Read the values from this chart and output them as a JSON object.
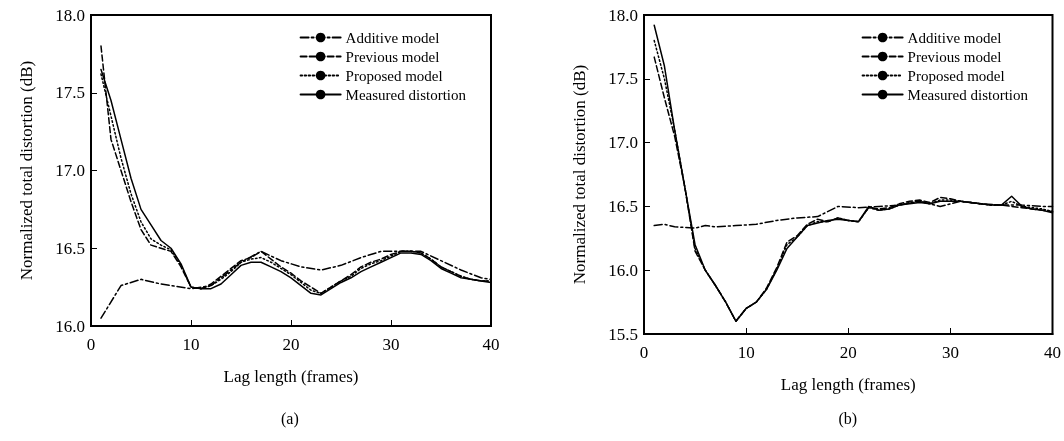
{
  "chart_data": [
    {
      "type": "line",
      "xlabel": "Lag length (frames)",
      "ylabel": "Normalized total distortion (dB)",
      "annotations": [
        "(a)"
      ],
      "xlim": [
        0,
        40
      ],
      "xticks": [
        0,
        10,
        20,
        30,
        40
      ],
      "ylim": [
        16,
        18
      ],
      "yticks": [
        {
          "value": 16,
          "label": "16.0"
        },
        {
          "value": 16.5,
          "label": "16.5"
        },
        {
          "value": 17,
          "label": "17.0"
        },
        {
          "value": 17.5,
          "label": "17.5"
        },
        {
          "value": 18,
          "label": "18.0"
        }
      ],
      "grid": false,
      "legend": "top right",
      "marker": "none",
      "series": [
        {
          "name": "Additive model",
          "color": "#000000",
          "line_style": "dashdot",
          "x": [
            1,
            3,
            5,
            7,
            10,
            12,
            15,
            17,
            19,
            21,
            23,
            25,
            27,
            29,
            31,
            33,
            35,
            37,
            39,
            40
          ],
          "values": [
            16.05,
            16.26,
            16.3,
            16.27,
            16.24,
            16.26,
            16.41,
            16.48,
            16.42,
            16.38,
            16.36,
            16.39,
            16.44,
            16.48,
            16.48,
            16.48,
            16.42,
            16.36,
            16.31,
            16.3
          ]
        },
        {
          "name": "Previous model",
          "color": "#000000",
          "line_style": "dashed",
          "x": [
            1,
            2,
            3,
            4,
            5,
            6,
            7,
            8,
            9,
            10,
            11,
            12,
            13,
            14,
            15,
            16,
            17,
            18,
            19,
            20,
            21,
            22,
            23,
            24,
            25,
            26,
            27,
            28,
            29,
            30,
            31,
            32,
            33,
            34,
            35,
            36,
            37,
            38,
            39,
            40
          ],
          "values": [
            17.8,
            17.2,
            17.0,
            16.8,
            16.62,
            16.52,
            16.5,
            16.48,
            16.38,
            16.25,
            16.24,
            16.27,
            16.32,
            16.37,
            16.42,
            16.44,
            16.48,
            16.43,
            16.38,
            16.34,
            16.29,
            16.25,
            16.21,
            16.25,
            16.29,
            16.33,
            16.38,
            16.41,
            16.43,
            16.46,
            16.48,
            16.48,
            16.47,
            16.43,
            16.38,
            16.35,
            16.32,
            16.3,
            16.29,
            16.29
          ]
        },
        {
          "name": "Proposed model",
          "color": "#000000",
          "line_style": "dotted",
          "x": [
            1,
            2,
            3,
            4,
            5,
            6,
            7,
            8,
            9,
            10,
            11,
            12,
            13,
            14,
            15,
            16,
            17,
            18,
            19,
            20,
            21,
            22,
            23,
            24,
            25,
            26,
            27,
            28,
            29,
            30,
            31,
            32,
            33,
            34,
            35,
            36,
            37,
            38,
            39,
            40
          ],
          "values": [
            17.62,
            17.35,
            17.08,
            16.85,
            16.67,
            16.56,
            16.52,
            16.49,
            16.39,
            16.25,
            16.24,
            16.26,
            16.3,
            16.35,
            16.41,
            16.43,
            16.44,
            16.41,
            16.37,
            16.33,
            16.28,
            16.23,
            16.21,
            16.25,
            16.29,
            16.32,
            16.37,
            16.4,
            16.42,
            16.45,
            16.48,
            16.48,
            16.47,
            16.43,
            16.38,
            16.35,
            16.32,
            16.3,
            16.29,
            16.29
          ]
        },
        {
          "name": "Measured distortion",
          "color": "#000000",
          "line_style": "solid",
          "x": [
            1,
            2,
            3,
            4,
            5,
            6,
            7,
            8,
            9,
            10,
            11,
            12,
            13,
            14,
            15,
            16,
            17,
            18,
            19,
            20,
            21,
            22,
            23,
            24,
            25,
            26,
            27,
            28,
            29,
            30,
            31,
            32,
            33,
            34,
            35,
            36,
            37,
            38,
            39,
            40
          ],
          "values": [
            17.65,
            17.45,
            17.2,
            16.95,
            16.75,
            16.65,
            16.55,
            16.5,
            16.4,
            16.25,
            16.24,
            16.24,
            16.27,
            16.33,
            16.39,
            16.41,
            16.41,
            16.38,
            16.35,
            16.31,
            16.26,
            16.21,
            16.2,
            16.24,
            16.28,
            16.31,
            16.35,
            16.38,
            16.41,
            16.44,
            16.47,
            16.47,
            16.46,
            16.42,
            16.37,
            16.34,
            16.31,
            16.3,
            16.29,
            16.28
          ]
        }
      ]
    },
    {
      "type": "line",
      "xlabel": "Lag length (frames)",
      "ylabel": "Normalized total distortion (dB)",
      "annotations": [
        "(b)"
      ],
      "xlim": [
        0,
        40
      ],
      "xticks": [
        0,
        10,
        20,
        30,
        40
      ],
      "ylim": [
        15.5,
        18
      ],
      "yticks": [
        {
          "value": 15.5,
          "label": "15.5"
        },
        {
          "value": 16,
          "label": "16.0"
        },
        {
          "value": 16.5,
          "label": "16.5"
        },
        {
          "value": 17,
          "label": "17.0"
        },
        {
          "value": 17.5,
          "label": "17.5"
        },
        {
          "value": 18,
          "label": "18.0"
        }
      ],
      "grid": false,
      "legend": "top right",
      "marker": "none",
      "series": [
        {
          "name": "Additive model",
          "color": "#000000",
          "line_style": "dashdot",
          "x": [
            1,
            2,
            3,
            5,
            6,
            7,
            9,
            11,
            13,
            15,
            17,
            19,
            21,
            23,
            25,
            27,
            29,
            31,
            33,
            35,
            37,
            39,
            40
          ],
          "values": [
            16.35,
            16.36,
            16.34,
            16.33,
            16.35,
            16.34,
            16.35,
            16.36,
            16.39,
            16.41,
            16.42,
            16.5,
            16.49,
            16.5,
            16.51,
            16.54,
            16.5,
            16.54,
            16.52,
            16.51,
            16.51,
            16.5,
            16.5
          ]
        },
        {
          "name": "Previous model",
          "color": "#000000",
          "line_style": "dashed",
          "x": [
            1,
            2,
            3,
            4,
            5,
            6,
            7,
            8,
            9,
            10,
            11,
            12,
            13,
            14,
            15,
            16,
            17,
            18,
            19,
            20,
            21,
            22,
            23,
            24,
            25,
            26,
            27,
            28,
            29,
            30,
            31,
            32,
            33,
            34,
            35,
            36,
            37,
            38,
            39,
            40
          ],
          "values": [
            17.67,
            17.35,
            17.05,
            16.65,
            16.15,
            16.0,
            15.88,
            15.75,
            15.6,
            15.7,
            15.75,
            15.86,
            16.02,
            16.22,
            16.27,
            16.36,
            16.4,
            16.38,
            16.41,
            16.39,
            16.38,
            16.49,
            16.48,
            16.49,
            16.52,
            16.54,
            16.55,
            16.53,
            16.57,
            16.56,
            16.54,
            16.53,
            16.52,
            16.51,
            16.51,
            16.5,
            16.49,
            16.48,
            16.47,
            16.46
          ]
        },
        {
          "name": "Proposed model",
          "color": "#000000",
          "line_style": "dotted",
          "x": [
            1,
            2,
            3,
            4,
            5,
            6,
            7,
            8,
            9,
            10,
            11,
            12,
            13,
            14,
            15,
            16,
            17,
            18,
            19,
            20,
            21,
            22,
            23,
            24,
            25,
            26,
            27,
            28,
            29,
            30,
            31,
            32,
            33,
            34,
            35,
            36,
            37,
            38,
            39,
            40
          ],
          "values": [
            17.8,
            17.5,
            17.1,
            16.65,
            16.17,
            16.0,
            15.88,
            15.75,
            15.6,
            15.7,
            15.75,
            15.85,
            16.01,
            16.2,
            16.26,
            16.35,
            16.38,
            16.38,
            16.41,
            16.39,
            16.38,
            16.49,
            16.47,
            16.48,
            16.51,
            16.53,
            16.54,
            16.52,
            16.55,
            16.55,
            16.54,
            16.53,
            16.52,
            16.51,
            16.51,
            16.54,
            16.5,
            16.49,
            16.48,
            16.46
          ]
        },
        {
          "name": "Measured distortion",
          "color": "#000000",
          "line_style": "solid",
          "x": [
            1,
            2,
            3,
            4,
            5,
            6,
            7,
            8,
            9,
            10,
            11,
            12,
            13,
            14,
            15,
            16,
            17,
            18,
            19,
            20,
            21,
            22,
            23,
            24,
            25,
            26,
            27,
            28,
            29,
            30,
            31,
            32,
            33,
            34,
            35,
            36,
            37,
            38,
            39,
            40
          ],
          "values": [
            17.92,
            17.6,
            17.1,
            16.65,
            16.2,
            16.0,
            15.88,
            15.75,
            15.6,
            15.7,
            15.75,
            15.85,
            16.0,
            16.17,
            16.26,
            16.35,
            16.37,
            16.39,
            16.4,
            16.39,
            16.38,
            16.5,
            16.47,
            16.48,
            16.51,
            16.52,
            16.53,
            16.52,
            16.54,
            16.54,
            16.54,
            16.53,
            16.52,
            16.51,
            16.51,
            16.58,
            16.5,
            16.48,
            16.47,
            16.45
          ]
        }
      ]
    }
  ]
}
